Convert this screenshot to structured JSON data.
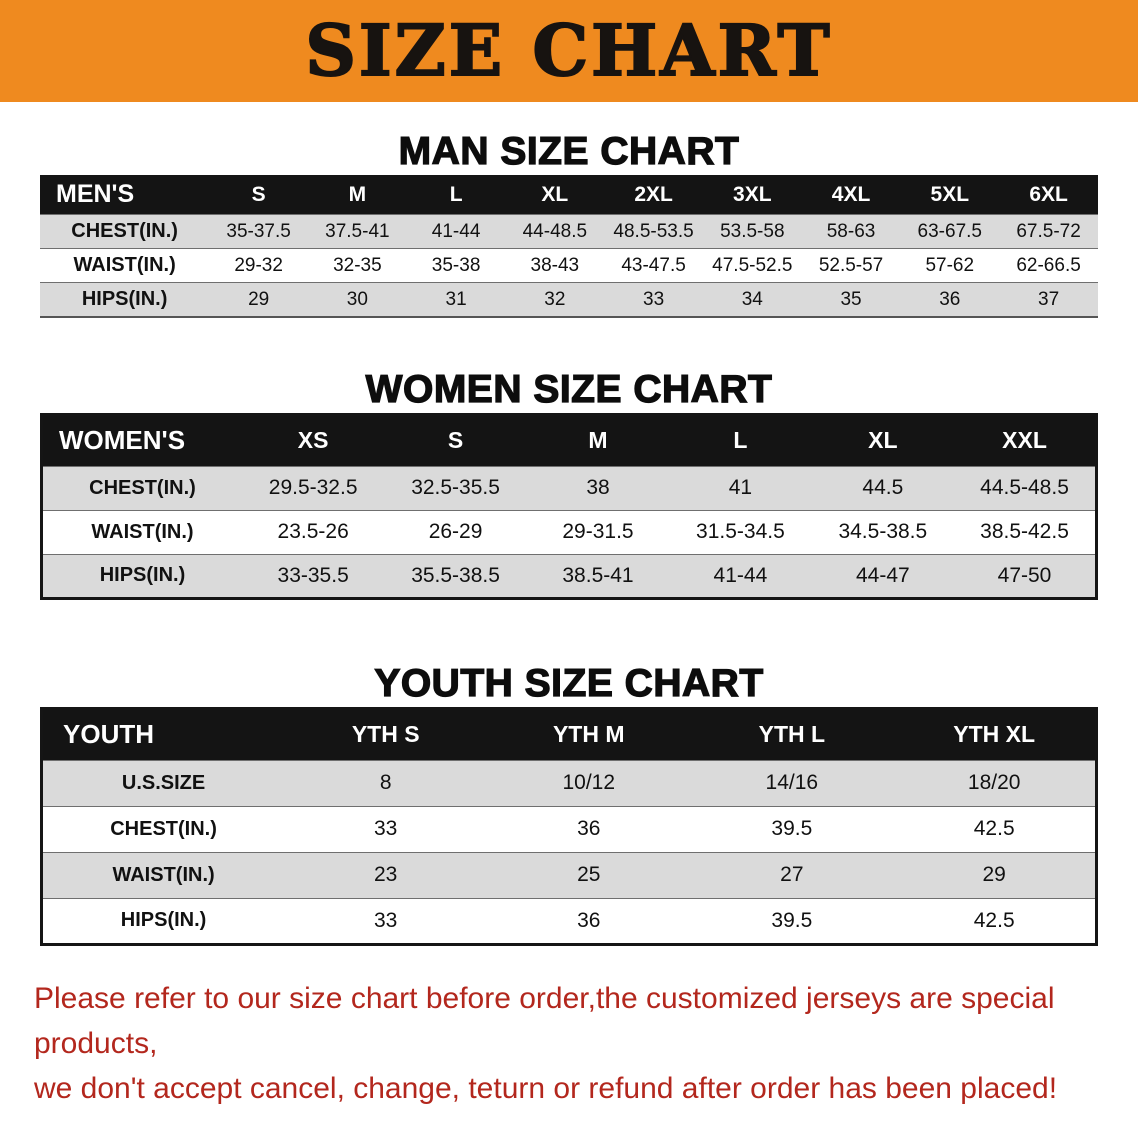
{
  "banner": {
    "title": "SIZE CHART",
    "bg_color": "#EF8A1F",
    "text_color": "#171310"
  },
  "sections": [
    {
      "id": "men",
      "heading": "MAN SIZE CHART",
      "table": {
        "header_label": "MEN'S",
        "columns": [
          "S",
          "M",
          "L",
          "XL",
          "2XL",
          "3XL",
          "4XL",
          "5XL",
          "6XL"
        ],
        "rows": [
          {
            "label": "CHEST(IN.)",
            "values": [
              "35-37.5",
              "37.5-41",
              "41-44",
              "44-48.5",
              "48.5-53.5",
              "53.5-58",
              "58-63",
              "63-67.5",
              "67.5-72"
            ]
          },
          {
            "label": "WAIST(IN.)",
            "values": [
              "29-32",
              "32-35",
              "35-38",
              "38-43",
              "43-47.5",
              "47.5-52.5",
              "52.5-57",
              "57-62",
              "62-66.5"
            ]
          },
          {
            "label": "HIPS(IN.)",
            "values": [
              "29",
              "30",
              "31",
              "32",
              "33",
              "34",
              "35",
              "36",
              "37"
            ]
          }
        ]
      }
    },
    {
      "id": "women",
      "heading": "WOMEN SIZE CHART",
      "table": {
        "header_label": "WOMEN'S",
        "columns": [
          "XS",
          "S",
          "M",
          "L",
          "XL",
          "XXL"
        ],
        "rows": [
          {
            "label": "CHEST(IN.)",
            "values": [
              "29.5-32.5",
              "32.5-35.5",
              "38",
              "41",
              "44.5",
              "44.5-48.5"
            ]
          },
          {
            "label": "WAIST(IN.)",
            "values": [
              "23.5-26",
              "26-29",
              "29-31.5",
              "31.5-34.5",
              "34.5-38.5",
              "38.5-42.5"
            ]
          },
          {
            "label": "HIPS(IN.)",
            "values": [
              "33-35.5",
              "35.5-38.5",
              "38.5-41",
              "41-44",
              "44-47",
              "47-50"
            ]
          }
        ]
      }
    },
    {
      "id": "youth",
      "heading": "YOUTH SIZE CHART",
      "table": {
        "header_label": "YOUTH",
        "columns": [
          "YTH S",
          "YTH M",
          "YTH L",
          "YTH XL"
        ],
        "rows": [
          {
            "label": "U.S.SIZE",
            "values": [
              "8",
              "10/12",
              "14/16",
              "18/20"
            ]
          },
          {
            "label": "CHEST(IN.)",
            "values": [
              "33",
              "36",
              "39.5",
              "42.5"
            ]
          },
          {
            "label": "WAIST(IN.)",
            "values": [
              "23",
              "25",
              "27",
              "29"
            ]
          },
          {
            "label": "HIPS(IN.)",
            "values": [
              "33",
              "36",
              "39.5",
              "42.5"
            ]
          }
        ]
      }
    }
  ],
  "disclaimer": {
    "lines": [
      "Please refer to our size chart before order,the customized jerseys are special products,",
      "we don't accept cancel, change, teturn or refund after order has been placed!"
    ],
    "color": "#B3271D"
  },
  "colors": {
    "table_header_bg": "#141414",
    "row_stripe": "#DADADA"
  }
}
